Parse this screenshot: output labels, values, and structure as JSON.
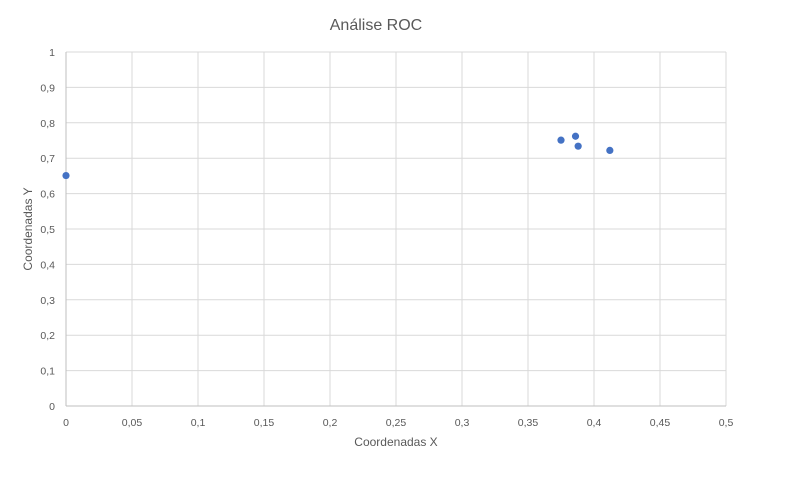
{
  "chart_data": {
    "type": "scatter",
    "title": "Análise ROC",
    "xlabel": "Coordenadas X",
    "ylabel": "Coordenadas Y",
    "xlim": [
      0,
      0.5
    ],
    "ylim": [
      0,
      1
    ],
    "x_ticks": [
      "0",
      "0,05",
      "0,1",
      "0,15",
      "0,2",
      "0,25",
      "0,3",
      "0,35",
      "0,4",
      "0,45",
      "0,5"
    ],
    "y_ticks": [
      "0",
      "0,1",
      "0,2",
      "0,3",
      "0,4",
      "0,5",
      "0,6",
      "0,7",
      "0,8",
      "0,9",
      "1"
    ],
    "grid": true,
    "legend": "none",
    "series": [
      {
        "color": "#4472C4",
        "points": [
          {
            "x": 0.0,
            "y": 0.651
          },
          {
            "x": 0.375,
            "y": 0.751
          },
          {
            "x": 0.386,
            "y": 0.762
          },
          {
            "x": 0.388,
            "y": 0.734
          },
          {
            "x": 0.412,
            "y": 0.722
          }
        ]
      }
    ],
    "colors": {
      "grid": "#d9d9d9",
      "axis": "#bfbfbf",
      "text": "#595959",
      "marker": "#4472C4"
    }
  }
}
